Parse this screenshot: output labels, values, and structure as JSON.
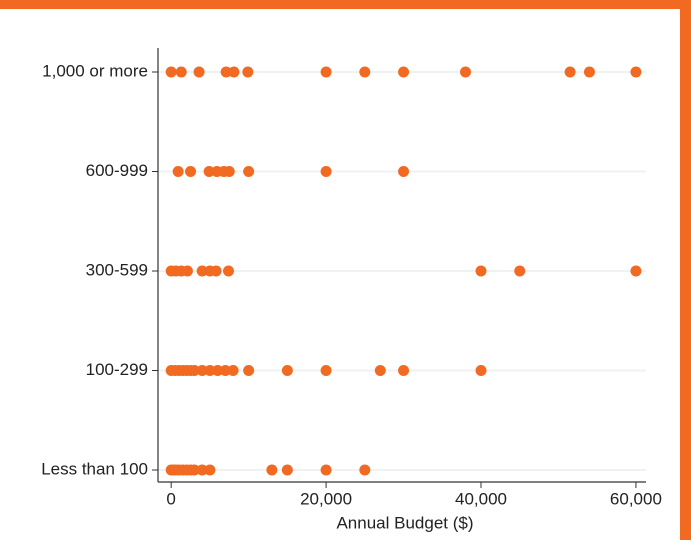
{
  "chart_data": {
    "type": "scatter",
    "x_label": "Annual Budget ($)",
    "categories": [
      "Less than 100",
      "100-299",
      "300-599",
      "600-999",
      "1,000 or more"
    ],
    "values": [
      [
        0,
        300,
        600,
        1000,
        1500,
        2000,
        2500,
        3000,
        4000,
        5000,
        13000,
        15000,
        20000,
        25000
      ],
      [
        0,
        500,
        1000,
        1500,
        2000,
        2500,
        3000,
        4000,
        5000,
        6000,
        7000,
        8000,
        10000,
        15000,
        20000,
        27000,
        30000,
        40000
      ],
      [
        0,
        600,
        1300,
        2100,
        4000,
        5000,
        5800,
        7400,
        40000,
        45000,
        60000
      ],
      [
        900,
        2500,
        4900,
        5900,
        6800,
        7500,
        10000,
        20000,
        30000
      ],
      [
        0,
        1300,
        3600,
        7100,
        8100,
        9900,
        20000,
        25000,
        30000,
        38000,
        51500,
        54000,
        60000
      ]
    ],
    "color": "#f26a21",
    "xlim": [
      -1700,
      61300
    ],
    "xticks": [
      0,
      {
        "value": 20000,
        "label": "20,000"
      },
      {
        "value": 40000,
        "label": "40,000"
      },
      {
        "value": 60000,
        "label": "60,000"
      }
    ],
    "grid": true
  }
}
